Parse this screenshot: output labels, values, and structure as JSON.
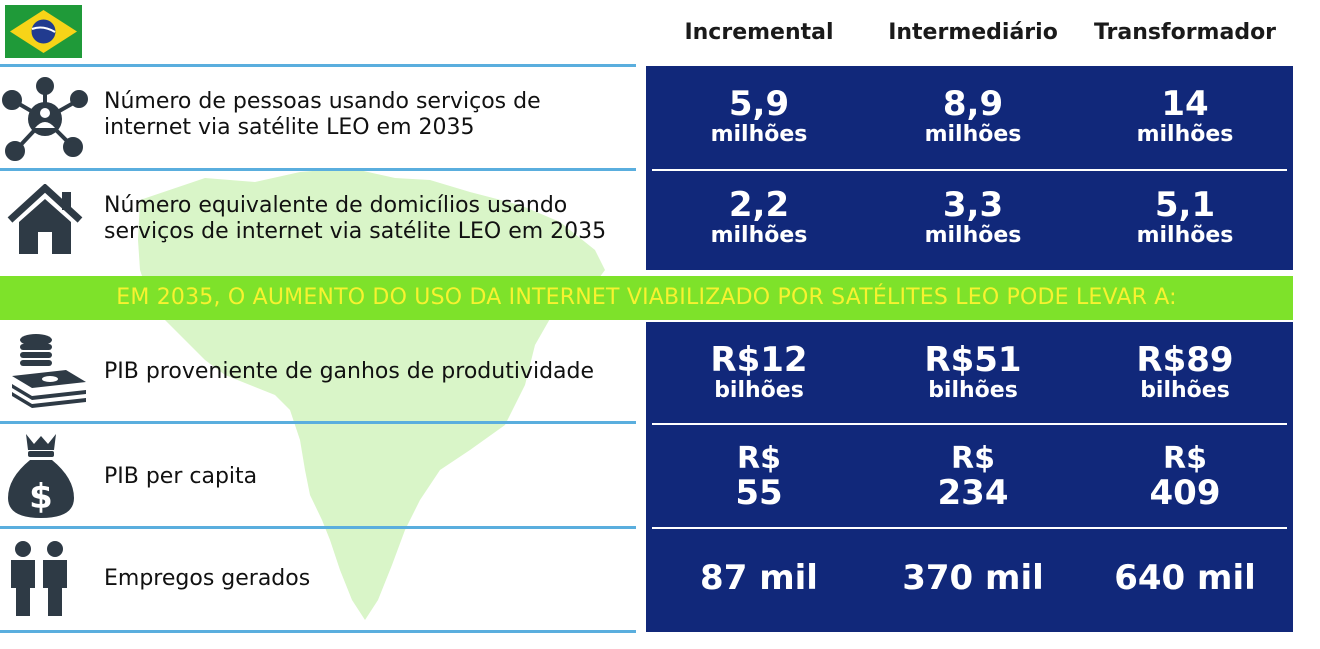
{
  "flag_icon": "brazil-flag-icon",
  "columns": [
    "Incremental",
    "Intermediário",
    "Transformador"
  ],
  "rows_top": [
    {
      "icon": "network-person-icon",
      "label_lines": [
        "Número de pessoas usando serviços de",
        "internet via satélite LEO em 2035"
      ],
      "values": [
        {
          "big": "5,9",
          "small": "milhões"
        },
        {
          "big": "8,9",
          "small": "milhões"
        },
        {
          "big": "14",
          "small": "milhões"
        }
      ]
    },
    {
      "icon": "house-icon",
      "label_lines": [
        "Número equivalente de domicílios usando",
        "serviços de internet via satélite LEO em 2035"
      ],
      "values": [
        {
          "big": "2,2",
          "small": "milhões"
        },
        {
          "big": "3,3",
          "small": "milhões"
        },
        {
          "big": "5,1",
          "small": "milhões"
        }
      ]
    }
  ],
  "banner": "EM 2035, O AUMENTO DO USO DA INTERNET VIABILIZADO POR SATÉLITES LEO PODE LEVAR A:",
  "rows_bottom": [
    {
      "icon": "coins-cash-icon",
      "label": "PIB proveniente de ganhos de produtividade",
      "values": [
        {
          "big": "R$12",
          "small": "bilhões"
        },
        {
          "big": "R$51",
          "small": "bilhões"
        },
        {
          "big": "R$89",
          "small": "bilhões"
        }
      ]
    },
    {
      "icon": "money-bag-icon",
      "label": "PIB per capita",
      "values": [
        {
          "big": "R$",
          "small": "55"
        },
        {
          "big": "R$",
          "small": "234"
        },
        {
          "big": "R$",
          "small": "409"
        }
      ]
    },
    {
      "icon": "people-icon",
      "label": "Empregos gerados",
      "values": [
        {
          "big": "87 mil"
        },
        {
          "big": "370 mil"
        },
        {
          "big": "640 mil"
        }
      ]
    }
  ],
  "colors": {
    "panel": "#11287a",
    "banner": "#7ee22a",
    "banner_text": "#f7f230",
    "rule": "#5aaede",
    "map": "#d9f5c8",
    "icon": "#2e3a45"
  }
}
